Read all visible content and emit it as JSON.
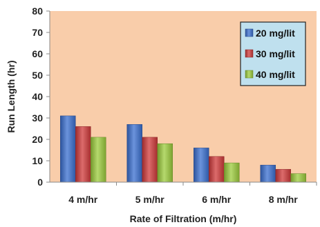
{
  "chart_data": {
    "type": "bar",
    "title": "",
    "xlabel": "Rate of Filtration (m/hr)",
    "ylabel": "Run Length (hr)",
    "categories": [
      "4 m/hr",
      "5 m/hr",
      "6 m/hr",
      "8 m/hr"
    ],
    "series": [
      {
        "name": "20 mg/lit",
        "values": [
          31,
          27,
          16,
          8
        ],
        "color": "#3a6fd0"
      },
      {
        "name": "30 mg/lit",
        "values": [
          26,
          21,
          12,
          6
        ],
        "color": "#d0393a"
      },
      {
        "name": "40 mg/lit",
        "values": [
          21,
          18,
          9,
          4
        ],
        "color": "#9ccc3c"
      }
    ],
    "ylim": [
      0,
      80
    ],
    "yticks": [
      0,
      10,
      20,
      30,
      40,
      50,
      60,
      70,
      80
    ],
    "grid": false,
    "legend_position": "top-right",
    "plot_background": "#f9cdaa"
  }
}
